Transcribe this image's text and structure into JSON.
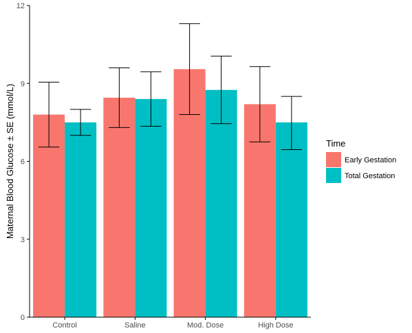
{
  "chart_data": {
    "type": "bar",
    "title": "",
    "xlabel": "",
    "ylabel": "Maternal Blood Glucose ± SE (mmol/L)",
    "ylim": [
      0,
      12
    ],
    "yticks": [
      0,
      3,
      6,
      9,
      12
    ],
    "grid": false,
    "legend_position": "right",
    "legend_title": "Time",
    "categories": [
      "Control",
      "Saline",
      "Mod. Dose",
      "High Dose"
    ],
    "series": [
      {
        "name": "Early Gestation",
        "color": "#F8766D",
        "values": [
          7.8,
          8.45,
          9.55,
          8.2
        ],
        "error_low": [
          6.55,
          7.3,
          7.8,
          6.75
        ],
        "error_high": [
          9.05,
          9.6,
          11.3,
          9.65
        ]
      },
      {
        "name": "Total Gestation",
        "color": "#00BFC4",
        "values": [
          7.5,
          8.4,
          8.75,
          7.5
        ],
        "error_low": [
          7.0,
          7.35,
          7.45,
          6.45
        ],
        "error_high": [
          8.0,
          9.45,
          10.05,
          8.5
        ]
      }
    ]
  }
}
